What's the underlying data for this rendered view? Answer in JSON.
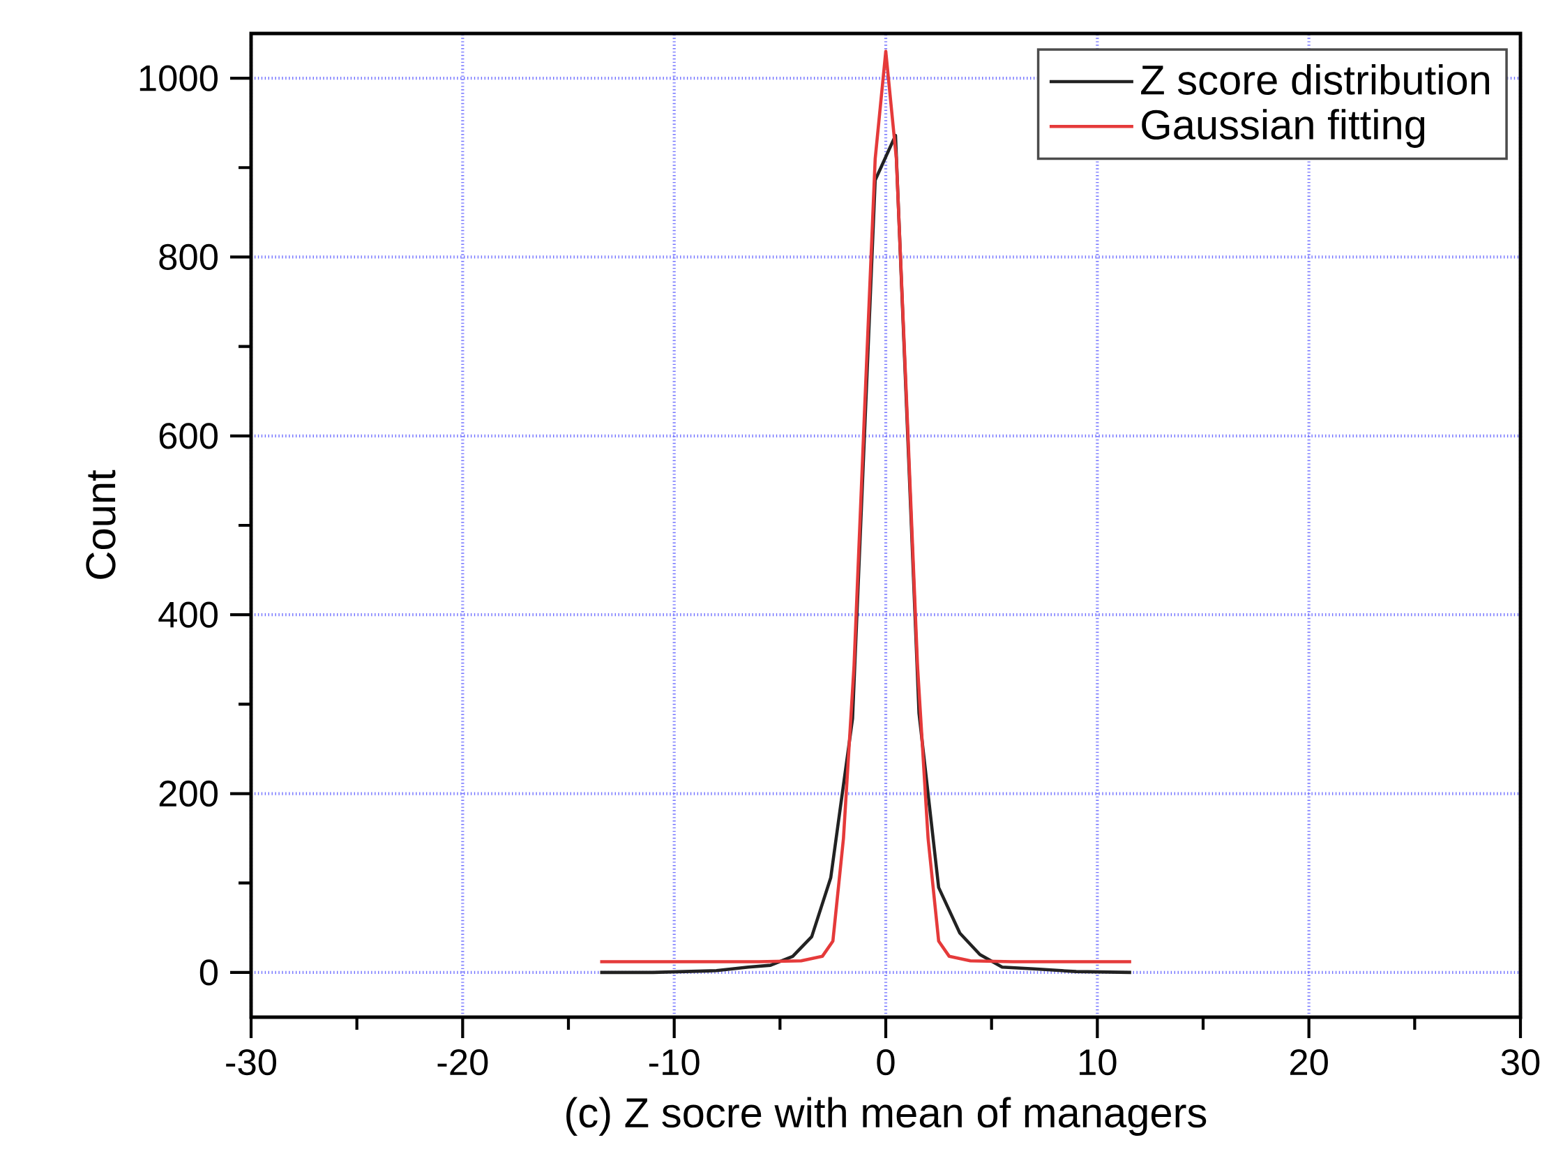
{
  "chart_data": {
    "type": "line",
    "xlabel": "(c) Z socre with mean of managers",
    "ylabel": "Count",
    "xlim": [
      -30,
      30
    ],
    "xticks": [
      -30,
      -20,
      -10,
      0,
      10,
      20,
      30
    ],
    "ylim": [
      -50,
      1050
    ],
    "yticks": [
      0,
      200,
      400,
      600,
      800,
      1000
    ],
    "grid": true,
    "legend": "top right",
    "line_style": "solid",
    "series": [
      {
        "name": "Z score distribution",
        "color": "#222222",
        "x": [
          -13.5,
          -11,
          -8,
          -6.5,
          -5.45,
          -4.4,
          -3.5,
          -2.6,
          -1.57,
          -0.5,
          0.46,
          1.57,
          2.5,
          3.5,
          4.45,
          5.5,
          7,
          9,
          11.6
        ],
        "values": [
          0,
          0,
          2,
          6,
          8,
          18,
          40,
          106,
          284,
          886,
          936,
          290,
          95,
          44,
          20,
          6,
          4,
          1,
          0
        ]
      },
      {
        "name": "Gaussian fitting",
        "color": "#e53a3a",
        "x": [
          -13.5,
          -6,
          -4,
          -3,
          -2.5,
          -2,
          -1.5,
          -1,
          -0.5,
          0,
          0.5,
          1,
          1.5,
          2,
          2.5,
          3,
          4,
          6,
          11.6
        ],
        "values": [
          12,
          12,
          13,
          18,
          35,
          150,
          343,
          630,
          910,
          1030,
          910,
          630,
          343,
          150,
          35,
          18,
          13,
          12,
          12
        ]
      }
    ]
  }
}
